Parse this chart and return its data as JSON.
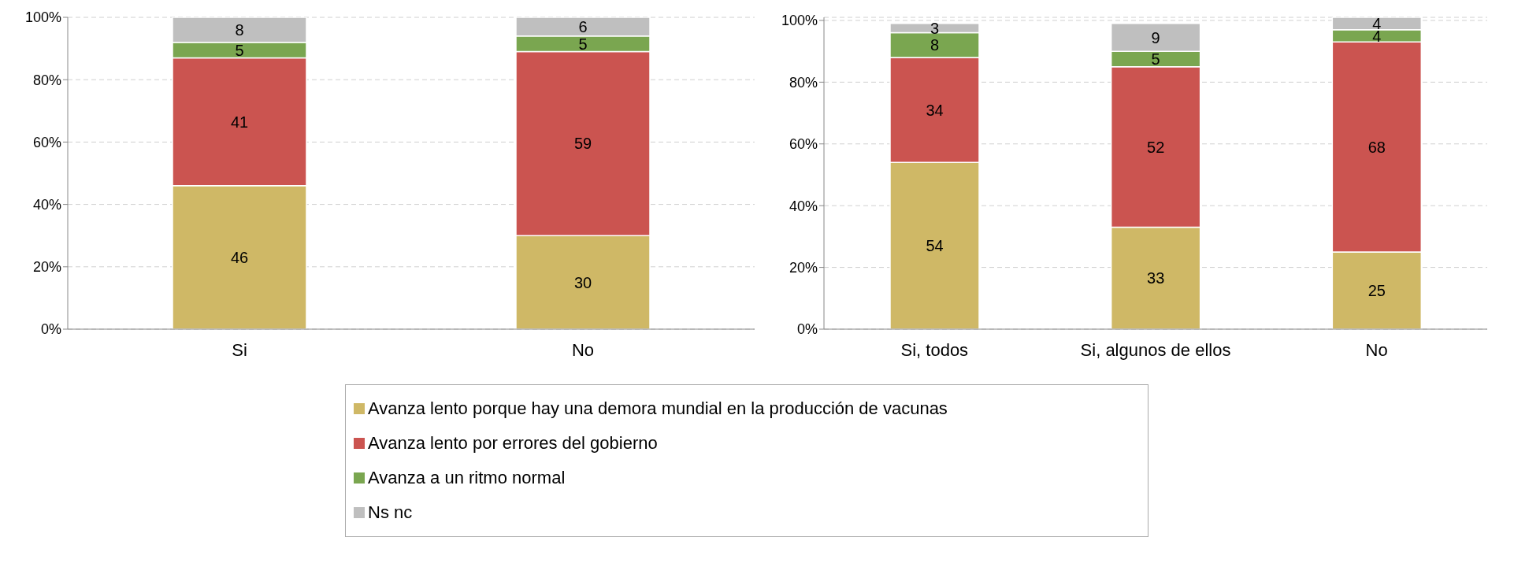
{
  "chart_data": [
    {
      "type": "bar",
      "stacked": true,
      "categories": [
        "Si",
        "No"
      ],
      "series": [
        {
          "name": "Avanza lento porque hay una demora mundial en la producción de vacunas",
          "color": "#cfb866",
          "values": [
            46,
            30
          ]
        },
        {
          "name": "Avanza lento por errores del gobierno",
          "color": "#cb5450",
          "values": [
            41,
            59
          ]
        },
        {
          "name": "Avanza a un ritmo normal",
          "color": "#7aa650",
          "values": [
            5,
            5
          ]
        },
        {
          "name": "Ns nc",
          "color": "#bfbfbf",
          "values": [
            8,
            6
          ]
        }
      ],
      "ylim": [
        0,
        100
      ],
      "yticks": [
        {
          "value": 0,
          "label": "0%"
        },
        {
          "value": 20,
          "label": "20%"
        },
        {
          "value": 40,
          "label": "40%"
        },
        {
          "value": 60,
          "label": "60%"
        },
        {
          "value": 80,
          "label": "80%"
        },
        {
          "value": 100,
          "label": "100%"
        }
      ],
      "grid": "y",
      "data_labels": true,
      "legend": "bottom"
    },
    {
      "type": "bar",
      "stacked": true,
      "categories": [
        "Si, todos",
        "Si, algunos de ellos",
        "No"
      ],
      "series": [
        {
          "color": "#cfb866",
          "values": [
            54,
            33,
            25
          ]
        },
        {
          "color": "#cb5450",
          "values": [
            34,
            52,
            68
          ]
        },
        {
          "color": "#7aa650",
          "values": [
            8,
            5,
            4
          ]
        },
        {
          "color": "#bfbfbf",
          "values": [
            3,
            9,
            4
          ]
        }
      ],
      "ylim": [
        0,
        101
      ],
      "yticks": [
        {
          "value": 0,
          "label": "0%"
        },
        {
          "value": 20,
          "label": "20%"
        },
        {
          "value": 40,
          "label": "40%"
        },
        {
          "value": 60,
          "label": "60%"
        },
        {
          "value": 80,
          "label": "80%"
        },
        {
          "value": 100,
          "label": "100%"
        }
      ],
      "grid": "y",
      "data_labels": true
    }
  ]
}
